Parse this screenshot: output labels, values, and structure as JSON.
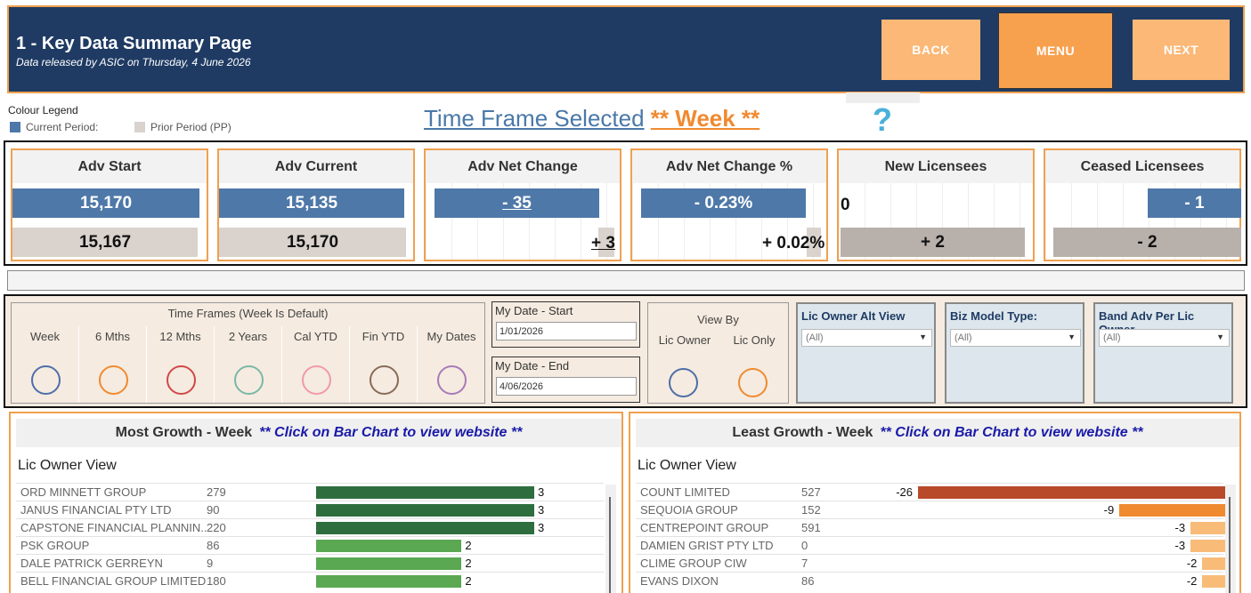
{
  "header": {
    "title": "1 - Key Data Summary Page",
    "subtitle": "Data released by ASIC on Thursday, 4 June 2026",
    "back_label": "BACK",
    "menu_label": "MENU",
    "next_label": "NEXT"
  },
  "legend": {
    "title": "Colour Legend",
    "current_label": "Current Period:",
    "prior_label": "Prior Period (PP)",
    "current_color": "#4e78a8",
    "prior_color": "#d9d2cd"
  },
  "time_frame": {
    "label": "Time Frame Selected",
    "value": "** Week **",
    "help": "?"
  },
  "kpis": [
    {
      "title": "Adv Start",
      "current": "15,170",
      "prior": "15,167"
    },
    {
      "title": "Adv Current",
      "current": "15,135",
      "prior": "15,170"
    },
    {
      "title": "Adv Net Change",
      "current": "- 35",
      "prior": "+ 3"
    },
    {
      "title": "Adv Net Change %",
      "current": "- 0.23%",
      "prior": "+ 0.02%"
    },
    {
      "title": "New Licensees",
      "current": "0",
      "prior": "+ 2"
    },
    {
      "title": "Ceased Licensees",
      "current": "- 1",
      "prior": "- 2"
    }
  ],
  "filters": {
    "time_frames_caption": "Time Frames (Week Is Default)",
    "options": [
      {
        "label": "Week",
        "color": "#4e6ea8"
      },
      {
        "label": "6 Mths",
        "color": "#f08a30"
      },
      {
        "label": "12 Mths",
        "color": "#d04848"
      },
      {
        "label": "2 Years",
        "color": "#7ab8a8"
      },
      {
        "label": "Cal YTD",
        "color": "#f09aa8"
      },
      {
        "label": "Fin YTD",
        "color": "#8a6a58"
      },
      {
        "label": "My Dates",
        "color": "#a87ab8"
      }
    ],
    "my_date_start_label": "My Date - Start",
    "my_date_start_value": "1/01/2026",
    "my_date_end_label": "My Date - End",
    "my_date_end_value": "4/06/2026",
    "view_by_caption": "View By",
    "view_by_options": [
      {
        "label": "Lic Owner",
        "color": "#4e6ea8"
      },
      {
        "label": "Lic Only",
        "color": "#f08a30"
      }
    ],
    "dropdowns": [
      {
        "label": "Lic Owner Alt View",
        "value": "(All)"
      },
      {
        "label": "Biz Model Type:",
        "value": "(All)"
      },
      {
        "label": "Band Adv Per Lic Owner",
        "value": "(All)"
      }
    ]
  },
  "most_growth": {
    "title": "Most Growth - Week",
    "click_note": "** Click on Bar Chart to view website **",
    "view_label": "Lic Owner View",
    "rows": [
      {
        "name": "ORD MINNETT GROUP",
        "count": "279",
        "value": 3,
        "color": "#2e6e3e"
      },
      {
        "name": "JANUS FINANCIAL PTY LTD",
        "count": "90",
        "value": 3,
        "color": "#2e6e3e"
      },
      {
        "name": "CAPSTONE FINANCIAL PLANNIN..",
        "count": "220",
        "value": 3,
        "color": "#2e6e3e"
      },
      {
        "name": "PSK GROUP",
        "count": "86",
        "value": 2,
        "color": "#5aa852"
      },
      {
        "name": "DALE PATRICK  GERREYN",
        "count": "9",
        "value": 2,
        "color": "#5aa852"
      },
      {
        "name": "BELL FINANCIAL GROUP LIMITED",
        "count": "180",
        "value": 2,
        "color": "#5aa852"
      }
    ]
  },
  "least_growth": {
    "title": "Least Growth - Week",
    "click_note": "** Click on Bar Chart to view website **",
    "view_label": "Lic Owner View",
    "rows": [
      {
        "name": "COUNT LIMITED",
        "count": "527",
        "value": -26,
        "color": "#b84a2a"
      },
      {
        "name": "SEQUOIA GROUP",
        "count": "152",
        "value": -9,
        "color": "#f08a30"
      },
      {
        "name": "CENTREPOINT GROUP",
        "count": "591",
        "value": -3,
        "color": "#f8bc78"
      },
      {
        "name": "DAMIEN GRIST PTY LTD",
        "count": "0",
        "value": -3,
        "color": "#f8bc78"
      },
      {
        "name": "CLIME GROUP CIW",
        "count": "7",
        "value": -2,
        "color": "#f8bc78"
      },
      {
        "name": "EVANS DIXON",
        "count": "86",
        "value": -2,
        "color": "#f8bc78"
      }
    ]
  }
}
